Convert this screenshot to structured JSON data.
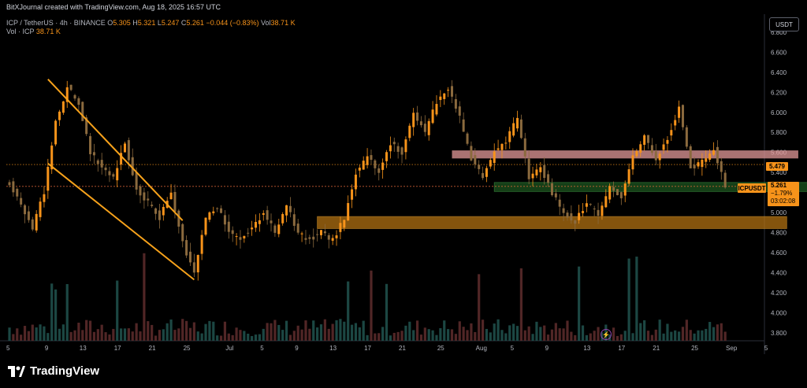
{
  "attribution": "BitXJournal created with TradingView.com, Aug 18, 2025 16:57 UTC",
  "legend": {
    "symbol": "ICP / TetherUS · 4h · BINANCE",
    "open_label": "O",
    "open": "5.305",
    "high_label": "H",
    "high": "5.321",
    "low_label": "L",
    "low": "5.247",
    "close_label": "C",
    "close": "5.261",
    "change": "−0.044 (−0.83%)",
    "vol_label": "Vol",
    "vol": "38.71 K",
    "vol_series": "Vol · ICP",
    "vol_value": "38.71 K"
  },
  "currency_button": "USDT",
  "price_tags": {
    "reference": "5.479",
    "symbol": "ICPUSDT",
    "current": "5.261",
    "current_change": "−1.79%",
    "countdown": "03:02:08"
  },
  "brand": "TradingView",
  "colors": {
    "up": "#f7931a",
    "down": "#8b6a3e",
    "channel": "#f7a21b",
    "resistance_zone": "#e8a0a0",
    "support_zone": "#2e7d32",
    "demand_zone": "#c87f12",
    "axis_text": "#b2b5be"
  },
  "chart_data": {
    "type": "candlestick",
    "interval": "4h",
    "x_tick_labels": [
      "5",
      "9",
      "13",
      "17",
      "21",
      "25",
      "Jul",
      "5",
      "9",
      "13",
      "17",
      "21",
      "25",
      "Aug",
      "5",
      "9",
      "13",
      "17",
      "21",
      "25",
      "Sep",
      "5"
    ],
    "y_tick_labels": [
      "3.800",
      "4.000",
      "4.200",
      "4.400",
      "4.600",
      "4.800",
      "5.000",
      "5.200",
      "5.400",
      "5.600",
      "5.800",
      "6.000",
      "6.200",
      "6.400",
      "6.600",
      "6.800"
    ],
    "ylim": [
      3.72,
      6.98
    ],
    "price_path": [
      [
        0,
        5.3
      ],
      [
        3,
        5.05
      ],
      [
        6,
        4.85
      ],
      [
        9,
        5.2
      ],
      [
        12,
        5.9
      ],
      [
        15,
        6.25
      ],
      [
        18,
        6.1
      ],
      [
        21,
        5.6
      ],
      [
        24,
        5.45
      ],
      [
        27,
        5.35
      ],
      [
        30,
        5.7
      ],
      [
        33,
        5.25
      ],
      [
        36,
        5.1
      ],
      [
        39,
        4.95
      ],
      [
        42,
        5.2
      ],
      [
        45,
        4.7
      ],
      [
        48,
        4.4
      ],
      [
        51,
        4.95
      ],
      [
        54,
        5.05
      ],
      [
        57,
        4.8
      ],
      [
        60,
        4.75
      ],
      [
        63,
        4.85
      ],
      [
        66,
        5.0
      ],
      [
        69,
        4.8
      ],
      [
        72,
        5.08
      ],
      [
        75,
        4.78
      ],
      [
        78,
        4.74
      ],
      [
        81,
        4.8
      ],
      [
        84,
        4.72
      ],
      [
        87,
        4.95
      ],
      [
        90,
        5.4
      ],
      [
        93,
        5.55
      ],
      [
        96,
        5.4
      ],
      [
        99,
        5.7
      ],
      [
        102,
        5.6
      ],
      [
        105,
        6.0
      ],
      [
        108,
        5.8
      ],
      [
        111,
        6.1
      ],
      [
        114,
        6.25
      ],
      [
        117,
        5.95
      ],
      [
        120,
        5.55
      ],
      [
        123,
        5.35
      ],
      [
        126,
        5.6
      ],
      [
        129,
        5.7
      ],
      [
        132,
        5.95
      ],
      [
        135,
        5.35
      ],
      [
        138,
        5.45
      ],
      [
        141,
        5.2
      ],
      [
        144,
        5.0
      ],
      [
        147,
        4.9
      ],
      [
        150,
        5.1
      ],
      [
        153,
        4.98
      ],
      [
        156,
        5.25
      ],
      [
        159,
        5.15
      ],
      [
        162,
        5.55
      ],
      [
        165,
        5.75
      ],
      [
        168,
        5.55
      ],
      [
        171,
        5.75
      ],
      [
        174,
        6.05
      ],
      [
        177,
        5.45
      ],
      [
        180,
        5.5
      ],
      [
        183,
        5.65
      ],
      [
        186,
        5.26
      ]
    ],
    "candles_count": 187,
    "annotations": [
      {
        "type": "descending-channel",
        "upper": [
          [
            10,
            6.33
          ],
          [
            45,
            4.92
          ]
        ],
        "lower": [
          [
            10,
            5.49
          ],
          [
            48,
            4.33
          ]
        ]
      },
      {
        "type": "resistance-zone",
        "from": 115,
        "to": 205,
        "top": 5.62,
        "bottom": 5.54
      },
      {
        "type": "support-zone",
        "from": 126,
        "to": 218,
        "top": 5.3,
        "bottom": 5.21
      },
      {
        "type": "demand-zone",
        "from": 80,
        "to": 202,
        "top": 4.96,
        "bottom": 4.84
      }
    ],
    "reference_line": 5.479,
    "current_price_line": 5.261,
    "volume": {
      "series": "Vol · ICP",
      "last": "38.71 K"
    },
    "grid": false
  }
}
